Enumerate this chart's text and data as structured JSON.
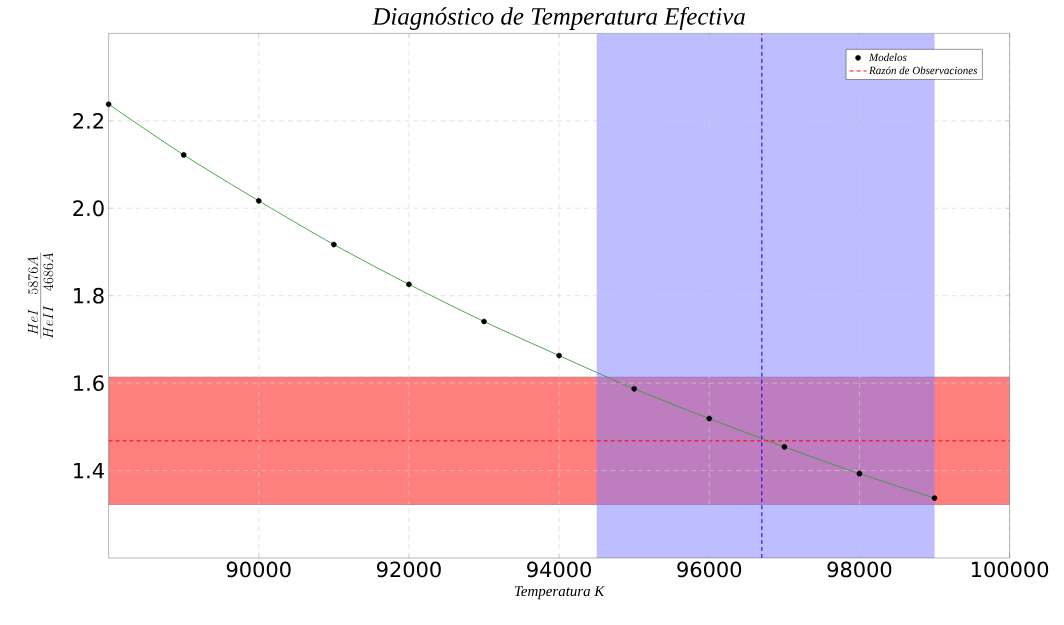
{
  "chart_data": {
    "type": "scatter",
    "title": "Diagnóstico de Temperatura Efectiva",
    "xlabel": "Temperatura  K",
    "ylabel": "\\frac{HeI\\ \\ 5876A}{HeII\\ \\ 4686A}",
    "series": [
      {
        "type": "line",
        "color": "#3a9a3a",
        "marker": "none",
        "x": [
          88000,
          89000,
          90000,
          91000,
          92000,
          93000,
          94000,
          95000,
          96000,
          97000,
          98000,
          99000
        ],
        "values": [
          2.238,
          2.122,
          2.017,
          1.917,
          1.826,
          1.741,
          1.663,
          1.587,
          1.519,
          1.454,
          1.393,
          1.337
        ]
      },
      {
        "type": "scatter",
        "name": "Modelos",
        "color": "#000000",
        "marker": "circle",
        "x": [
          88000,
          89000,
          90000,
          91000,
          92000,
          93000,
          94000,
          95000,
          96000,
          97000,
          98000,
          99000
        ],
        "values": [
          2.238,
          2.122,
          2.017,
          1.917,
          1.826,
          1.741,
          1.663,
          1.587,
          1.519,
          1.454,
          1.393,
          1.337
        ]
      }
    ],
    "ref_lines": [
      {
        "axis": "y",
        "value": 1.468,
        "label": "Razón de Observaciones",
        "color": "#ff0000",
        "line_style": "dashed"
      },
      {
        "axis": "x",
        "value": 96700,
        "color": "#0000ff",
        "line_style": "dashed"
      }
    ],
    "bands": [
      {
        "axis": "y",
        "from": 1.322,
        "to": 1.614,
        "color": "#ff0000"
      },
      {
        "axis": "x",
        "from": 94500,
        "to": 99000,
        "color": "#7b7bff"
      }
    ],
    "xlim": [
      88000,
      100000
    ],
    "ylim": [
      1.2,
      2.4
    ],
    "xticks": [
      90000,
      92000,
      94000,
      96000,
      98000,
      100000
    ],
    "yticks": [
      1.4,
      1.6,
      1.8,
      {
        "value": 2,
        "label": "2.0"
      },
      2.2
    ],
    "grid": true,
    "legend": "top right"
  }
}
